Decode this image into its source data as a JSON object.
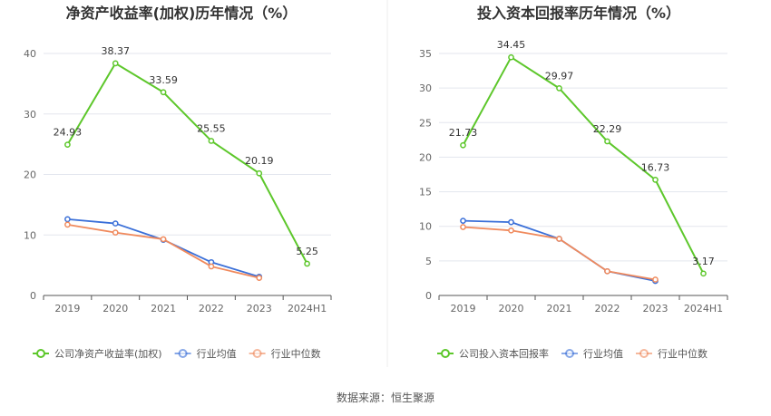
{
  "colors": {
    "company": "#5dc72b",
    "industry_avg": "#3a6fd8",
    "industry_median": "#f08a5d",
    "grid": "#e3e6ee",
    "axis": "#555555"
  },
  "source_text": "数据来源：恒生聚源",
  "chart_data": [
    {
      "type": "line",
      "title": "净资产收益率(加权)历年情况（%）",
      "categories": [
        "2019",
        "2020",
        "2021",
        "2022",
        "2023",
        "2024H1"
      ],
      "ylim": [
        0,
        40
      ],
      "yticks": [
        0,
        10,
        20,
        30,
        40
      ],
      "series": [
        {
          "name": "公司净资产收益率(加权)",
          "role": "company",
          "values": [
            24.93,
            38.37,
            33.59,
            25.55,
            20.19,
            5.25
          ],
          "labels": [
            "24.93",
            "38.37",
            "33.59",
            "25.55",
            "20.19",
            "5.25"
          ]
        },
        {
          "name": "行业均值",
          "role": "industry_avg",
          "values": [
            12.6,
            11.9,
            9.2,
            5.5,
            3.1,
            null
          ]
        },
        {
          "name": "行业中位数",
          "role": "industry_median",
          "values": [
            11.7,
            10.4,
            9.3,
            4.8,
            2.9,
            null
          ]
        }
      ]
    },
    {
      "type": "line",
      "title": "投入资本回报率历年情况（%）",
      "categories": [
        "2019",
        "2020",
        "2021",
        "2022",
        "2023",
        "2024H1"
      ],
      "ylim": [
        0,
        35
      ],
      "yticks": [
        0,
        5,
        10,
        15,
        20,
        25,
        30,
        35
      ],
      "series": [
        {
          "name": "公司投入资本回报率",
          "role": "company",
          "values": [
            21.73,
            34.45,
            29.97,
            22.29,
            16.73,
            3.17
          ],
          "labels": [
            "21.73",
            "34.45",
            "29.97",
            "22.29",
            "16.73",
            "3.17"
          ]
        },
        {
          "name": "行业均值",
          "role": "industry_avg",
          "values": [
            10.8,
            10.6,
            8.2,
            3.5,
            2.1,
            null
          ]
        },
        {
          "name": "行业中位数",
          "role": "industry_median",
          "values": [
            9.9,
            9.4,
            8.2,
            3.5,
            2.3,
            null
          ]
        }
      ]
    }
  ]
}
